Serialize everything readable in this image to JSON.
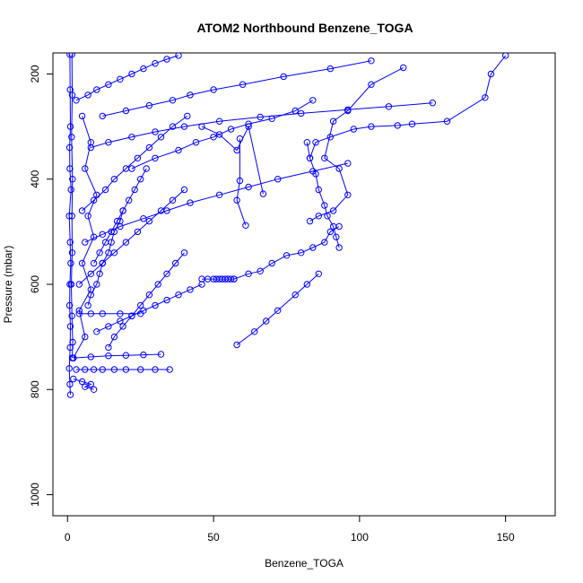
{
  "chart_data": {
    "type": "line",
    "title": "ATOM2 Northbound Benzene_TOGA",
    "xlabel": "Benzene_TOGA",
    "ylabel": "Pressure (mbar)",
    "xlim": [
      -5,
      167
    ],
    "ylim": [
      1040,
      160
    ],
    "x_ticks": [
      0,
      50,
      100,
      150
    ],
    "y_ticks": [
      200,
      400,
      600,
      800,
      1000
    ],
    "grid": false,
    "legend": "none",
    "color": "#0000ff",
    "marker": "open-circle",
    "series": [
      {
        "x": [
          0.8,
          0.9,
          1.0,
          0.7,
          0.8,
          1.2,
          0.6,
          0.9,
          1.1,
          0.8,
          0.7,
          1.0,
          0.9,
          0.6,
          0.8,
          1.0
        ],
        "y": [
          163,
          230,
          300,
          340,
          380,
          420,
          470,
          520,
          560,
          600,
          640,
          680,
          720,
          760,
          790,
          810
        ]
      },
      {
        "x": [
          1.5,
          1.6,
          1.4,
          1.7,
          1.5,
          1.6,
          1.3,
          1.5,
          1.8,
          1.6
        ],
        "y": [
          163,
          240,
          320,
          400,
          470,
          540,
          600,
          660,
          710,
          740
        ]
      },
      {
        "x": [
          2.0,
          6.0,
          4.0,
          8.0,
          5.0,
          9.0,
          7.0,
          10.0,
          6.0,
          8.0,
          5.0
        ],
        "y": [
          740,
          700,
          650,
          610,
          560,
          510,
          470,
          430,
          380,
          330,
          280
        ]
      },
      {
        "x": [
          3.0,
          6.0,
          9.0,
          12.0,
          16.0,
          20.0,
          25.0,
          30.0,
          35.0
        ],
        "y": [
          762,
          762,
          762,
          762,
          762,
          762,
          762,
          762,
          762
        ]
      },
      {
        "x": [
          2.0,
          8.0,
          14.0,
          20.0,
          26.0,
          32.0
        ],
        "y": [
          740,
          738,
          736,
          735,
          734,
          733
        ]
      },
      {
        "x": [
          4.0,
          8.0,
          12.0,
          18.0,
          25.0
        ],
        "y": [
          656,
          656,
          656,
          656,
          656
        ]
      },
      {
        "x": [
          2.0,
          5.0,
          8.0,
          6.0,
          9.0
        ],
        "y": [
          780,
          785,
          790,
          795,
          800
        ]
      },
      {
        "x": [
          46,
          48,
          50,
          51,
          52,
          53,
          54,
          55,
          56,
          57
        ],
        "y": [
          590,
          590,
          590,
          590,
          590,
          590,
          590,
          590,
          590,
          590
        ]
      },
      {
        "x": [
          57,
          62,
          66,
          70,
          75,
          80,
          84,
          88,
          90,
          93
        ],
        "y": [
          590,
          580,
          575,
          560,
          545,
          540,
          530,
          520,
          500,
          490
        ]
      },
      {
        "x": [
          58,
          64,
          68,
          72,
          78,
          82,
          86
        ],
        "y": [
          715,
          690,
          670,
          650,
          620,
          600,
          580
        ]
      },
      {
        "x": [
          150,
          145,
          143,
          130,
          118,
          113,
          104,
          98,
          90,
          85,
          83
        ],
        "y": [
          165,
          200,
          245,
          290,
          295,
          298,
          300,
          305,
          320,
          330,
          360
        ]
      },
      {
        "x": [
          115,
          104,
          96,
          91,
          88,
          93,
          96,
          91,
          86,
          83
        ],
        "y": [
          188,
          220,
          270,
          290,
          360,
          380,
          430,
          460,
          470,
          480
        ]
      },
      {
        "x": [
          67,
          62,
          58,
          52,
          46
        ],
        "y": [
          428,
          300,
          345,
          315,
          300
        ]
      },
      {
        "x": [
          59,
          59,
          58,
          61
        ],
        "y": [
          323,
          403,
          440,
          488
        ]
      },
      {
        "x": [
          82,
          83,
          85,
          86,
          88,
          89,
          91,
          92,
          93
        ],
        "y": [
          330,
          360,
          390,
          420,
          450,
          470,
          490,
          510,
          530
        ]
      },
      {
        "x": [
          22,
          30,
          38,
          44,
          50,
          56,
          62,
          70,
          78,
          84
        ],
        "y": [
          380,
          360,
          345,
          330,
          320,
          305,
          295,
          285,
          270,
          250
        ]
      },
      {
        "x": [
          12,
          20,
          28,
          36,
          42,
          50,
          60,
          74,
          90,
          104
        ],
        "y": [
          280,
          270,
          260,
          250,
          240,
          230,
          220,
          205,
          190,
          175
        ]
      },
      {
        "x": [
          8,
          14,
          22,
          30,
          40,
          52,
          66,
          80,
          96,
          110,
          125
        ],
        "y": [
          340,
          330,
          320,
          310,
          300,
          290,
          282,
          275,
          268,
          262,
          255
        ]
      },
      {
        "x": [
          6,
          12,
          18,
          26,
          34,
          42,
          52,
          62,
          72,
          84,
          96
        ],
        "y": [
          520,
          505,
          490,
          475,
          460,
          445,
          430,
          415,
          400,
          385,
          370
        ]
      },
      {
        "x": [
          4,
          8,
          12,
          16,
          20,
          24,
          28,
          32,
          36,
          40
        ],
        "y": [
          600,
          580,
          560,
          540,
          520,
          500,
          480,
          460,
          440,
          420
        ]
      },
      {
        "x": [
          10,
          14,
          18,
          22,
          26,
          30,
          34,
          38,
          42,
          46
        ],
        "y": [
          690,
          680,
          670,
          660,
          650,
          640,
          630,
          620,
          610,
          600
        ]
      },
      {
        "x": [
          14,
          16,
          19,
          22,
          25,
          28,
          31,
          34,
          37,
          40
        ],
        "y": [
          720,
          700,
          680,
          660,
          640,
          620,
          600,
          580,
          560,
          540
        ]
      },
      {
        "x": [
          5,
          9,
          13,
          16,
          20,
          24,
          28,
          32,
          36,
          41
        ],
        "y": [
          460,
          440,
          420,
          400,
          380,
          360,
          340,
          320,
          300,
          280
        ]
      },
      {
        "x": [
          3,
          7,
          10,
          14,
          18,
          22,
          26,
          30,
          34,
          38
        ],
        "y": [
          250,
          240,
          230,
          220,
          210,
          200,
          190,
          180,
          172,
          165
        ]
      },
      {
        "x": [
          9,
          11,
          13,
          15,
          17,
          19,
          21,
          23,
          25,
          27
        ],
        "y": [
          560,
          540,
          520,
          500,
          480,
          460,
          440,
          420,
          400,
          380
        ]
      },
      {
        "x": [
          7,
          8,
          10,
          11,
          12,
          14,
          15,
          16,
          18,
          19
        ],
        "y": [
          640,
          620,
          600,
          580,
          560,
          540,
          520,
          500,
          480,
          460
        ]
      }
    ]
  }
}
